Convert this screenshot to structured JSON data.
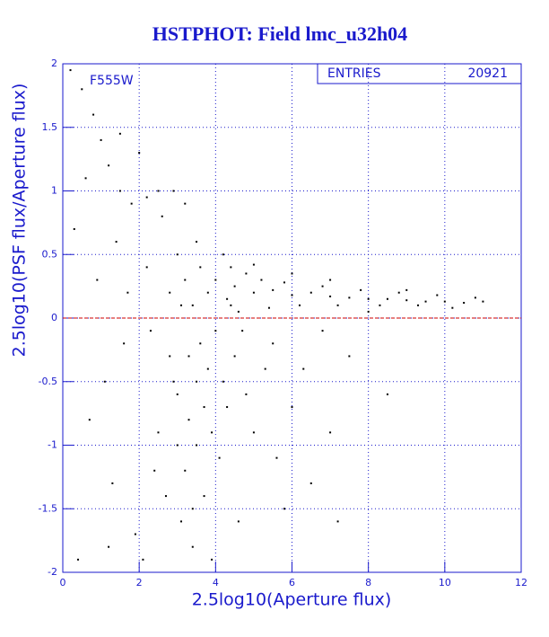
{
  "chart_data": {
    "type": "scatter",
    "title": "HSTPHOT: Field lmc_u32h04",
    "xlabel": "2.5log10(Aperture flux)",
    "ylabel": "2.5log10(PSF flux/Aperture flux)",
    "annotation": "F555W",
    "stats_label": "ENTRIES",
    "entries": 20921,
    "color": "#000000",
    "hline": 0,
    "hline_color": "#cc0000",
    "xlim": [
      0,
      12
    ],
    "ylim": [
      -2,
      2
    ],
    "xticks": [
      0,
      2,
      4,
      6,
      8,
      10,
      12
    ],
    "yticks": [
      -2,
      -1.5,
      -1,
      -0.5,
      0,
      0.5,
      1,
      1.5,
      2
    ],
    "grid": true,
    "x": [
      4.5,
      5,
      5.5,
      6,
      6.5,
      7,
      7.5,
      8,
      8.5,
      9,
      9.5,
      10,
      10.5,
      11,
      4.8,
      5.2,
      5.8,
      6.2,
      6.8,
      7.2,
      7.8,
      8.3,
      8.8,
      9.3,
      9.8,
      10.2,
      4.6,
      5.4,
      6.0,
      7.0,
      8.0,
      9.0,
      10.8,
      4.2,
      4.4,
      5.0,
      4.0,
      4.3,
      3.0,
      3.2,
      3.4,
      3.6,
      3.8,
      3.0,
      3.3,
      3.5,
      3.2,
      3.7,
      3.1,
      3.4,
      2.8,
      2.6,
      2.9,
      3.5,
      4.0,
      4.2,
      4.5,
      3.9,
      4.1,
      2.7,
      2.5,
      3.6,
      3.8,
      3.3,
      3.1,
      2.9,
      3.7,
      4.3,
      4.8,
      5.0,
      5.3,
      5.6,
      6.0,
      6.5,
      5.8,
      4.6,
      3.9,
      2.4,
      2.2,
      2.3,
      3.0,
      3.4,
      4.4,
      4.7,
      5.5,
      6.3,
      7.0,
      7.5,
      8.5,
      7.2,
      6.8,
      3.2,
      2.8,
      3.5,
      0.2,
      0.5,
      0.8,
      1.0,
      1.2,
      0.6,
      1.5,
      1.8,
      1.4,
      0.9,
      1.6,
      0.7,
      1.3,
      1.9,
      0.4,
      1.1,
      1.7,
      0.3,
      1.5,
      2.0,
      2.2,
      2.5,
      2.1,
      1.2
    ],
    "y": [
      0.25,
      0.2,
      0.22,
      0.18,
      0.2,
      0.17,
      0.16,
      0.15,
      0.15,
      0.14,
      0.13,
      0.13,
      0.12,
      0.13,
      0.35,
      0.3,
      0.28,
      0.1,
      0.25,
      0.1,
      0.22,
      0.1,
      0.2,
      0.1,
      0.18,
      0.08,
      0.05,
      0.08,
      0.35,
      0.3,
      0.05,
      0.22,
      0.16,
      0.5,
      0.4,
      0.42,
      0.3,
      0.15,
      0.5,
      0.3,
      0.1,
      -0.2,
      -0.4,
      -0.6,
      -0.8,
      -1.0,
      -1.2,
      -1.4,
      -1.6,
      -1.8,
      -0.3,
      0.8,
      1.0,
      0.6,
      -0.1,
      -0.5,
      -0.3,
      -0.9,
      -1.1,
      -1.4,
      -0.9,
      0.4,
      0.2,
      -0.3,
      0.1,
      -0.5,
      -0.7,
      -0.7,
      -0.6,
      -0.9,
      -0.4,
      -1.1,
      -0.7,
      -1.3,
      -1.5,
      -1.6,
      -1.9,
      -1.2,
      0.4,
      -0.1,
      -1.0,
      -1.5,
      0.1,
      -0.1,
      -0.2,
      -0.4,
      -0.9,
      -0.3,
      -0.6,
      -1.6,
      -0.1,
      0.9,
      0.2,
      -0.5,
      1.95,
      1.8,
      1.6,
      1.4,
      1.2,
      1.1,
      1.0,
      0.9,
      0.6,
      0.3,
      -0.2,
      -0.8,
      -1.3,
      -1.7,
      -1.9,
      -0.5,
      0.2,
      0.7,
      1.45,
      1.3,
      0.95,
      1.0,
      -1.9,
      -1.8
    ]
  }
}
